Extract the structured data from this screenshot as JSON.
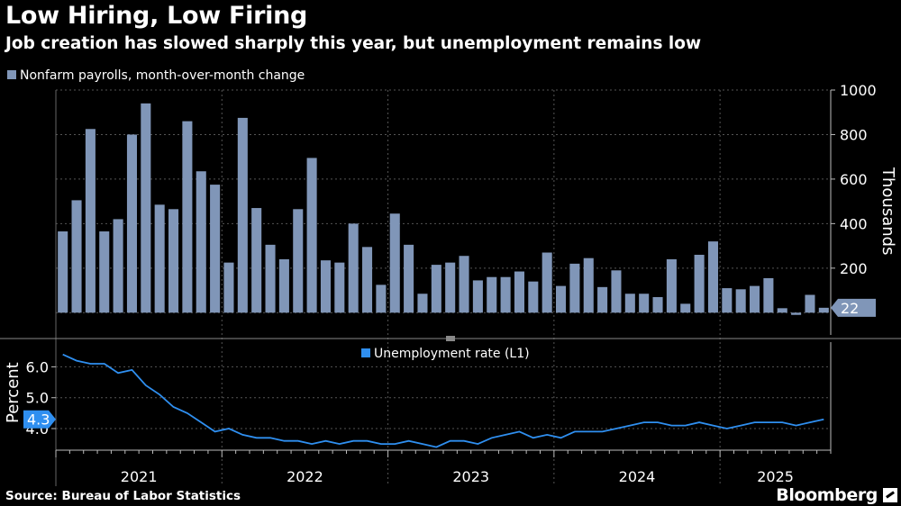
{
  "title": "Low Hiring, Low Firing",
  "subtitle": "Job creation has slowed sharply this year, but unemployment remains low",
  "source": "Source: Bureau of Labor Statistics",
  "brand": "Bloomberg",
  "colors": {
    "bars": "#8096b8",
    "line": "#2f8ff0",
    "background": "#000000",
    "text": "#ffffff"
  },
  "chart_data": [
    {
      "type": "bar",
      "legend": "Nonfarm payrolls, month-over-month change",
      "ylabel": "Thousands",
      "ylim": [
        -100,
        1000
      ],
      "yticks": [
        200,
        400,
        600,
        800,
        1000
      ],
      "last_value_label": "22",
      "x": [
        "2021-01",
        "2021-02",
        "2021-03",
        "2021-04",
        "2021-05",
        "2021-06",
        "2021-07",
        "2021-08",
        "2021-09",
        "2021-10",
        "2021-11",
        "2021-12",
        "2022-01",
        "2022-02",
        "2022-03",
        "2022-04",
        "2022-05",
        "2022-06",
        "2022-07",
        "2022-08",
        "2022-09",
        "2022-10",
        "2022-11",
        "2022-12",
        "2023-01",
        "2023-02",
        "2023-03",
        "2023-04",
        "2023-05",
        "2023-06",
        "2023-07",
        "2023-08",
        "2023-09",
        "2023-10",
        "2023-11",
        "2023-12",
        "2024-01",
        "2024-02",
        "2024-03",
        "2024-04",
        "2024-05",
        "2024-06",
        "2024-07",
        "2024-08",
        "2024-09",
        "2024-10",
        "2024-11",
        "2024-12",
        "2025-01",
        "2025-02",
        "2025-03",
        "2025-04",
        "2025-05",
        "2025-06",
        "2025-07",
        "2025-08"
      ],
      "values": [
        365,
        505,
        825,
        365,
        420,
        800,
        940,
        485,
        465,
        860,
        635,
        575,
        225,
        875,
        470,
        305,
        240,
        465,
        695,
        235,
        225,
        400,
        295,
        125,
        445,
        305,
        85,
        215,
        225,
        255,
        145,
        160,
        160,
        185,
        140,
        270,
        120,
        220,
        245,
        115,
        190,
        85,
        85,
        70,
        240,
        40,
        260,
        320,
        110,
        105,
        120,
        155,
        20,
        -10,
        80,
        22
      ]
    },
    {
      "type": "line",
      "legend": "Unemployment rate (L1)",
      "ylabel": "Percent",
      "ylim": [
        3.3,
        6.8
      ],
      "yticks": [
        4.0,
        5.0,
        6.0
      ],
      "ytick_labels": [
        "4.0",
        "5.0",
        "6.0"
      ],
      "last_value_label": "4.3",
      "x_axis_labels": [
        "2021",
        "2022",
        "2023",
        "2024",
        "2025"
      ],
      "values": [
        6.4,
        6.2,
        6.1,
        6.1,
        5.8,
        5.9,
        5.4,
        5.1,
        4.7,
        4.5,
        4.2,
        3.9,
        4.0,
        3.8,
        3.7,
        3.7,
        3.6,
        3.6,
        3.5,
        3.6,
        3.5,
        3.6,
        3.6,
        3.5,
        3.5,
        3.6,
        3.5,
        3.4,
        3.6,
        3.6,
        3.5,
        3.7,
        3.8,
        3.9,
        3.7,
        3.8,
        3.7,
        3.9,
        3.9,
        3.9,
        4.0,
        4.1,
        4.2,
        4.2,
        4.1,
        4.1,
        4.2,
        4.1,
        4.0,
        4.1,
        4.2,
        4.2,
        4.2,
        4.1,
        4.2,
        4.3
      ]
    }
  ]
}
